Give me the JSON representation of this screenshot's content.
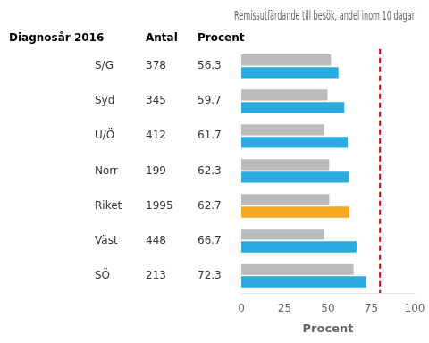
{
  "chart_data": {
    "type": "bar",
    "orientation": "horizontal",
    "title": "Remissutfärdande till besök, andel inom 10 dagar",
    "categories": [
      "S/G",
      "Syd",
      "U/Ö",
      "Norr",
      "Riket",
      "Väst",
      "SÖ"
    ],
    "series": [
      {
        "color": "#BBBBBB",
        "values": [
          52,
          50,
          48,
          51,
          51,
          48,
          65
        ]
      },
      {
        "colors": [
          "#29ABE2",
          "#29ABE2",
          "#29ABE2",
          "#29ABE2",
          "#F5A623",
          "#29ABE2",
          "#29ABE2"
        ],
        "values": [
          56.3,
          59.7,
          61.7,
          62.3,
          62.7,
          66.7,
          72.3
        ]
      }
    ],
    "xlabel": "Procent",
    "xlim": [
      0,
      100
    ],
    "xticks": [
      0,
      25,
      50,
      75,
      100
    ],
    "grid": false,
    "table": {
      "headers": [
        "Diagnosår 2016",
        "Antal",
        "Procent"
      ],
      "counts": [
        378,
        345,
        412,
        199,
        1995,
        448,
        213
      ],
      "percents": [
        56.3,
        59.7,
        61.7,
        62.3,
        62.7,
        66.7,
        72.3
      ]
    },
    "reference_line": {
      "x": 80,
      "color": "#CC0000",
      "line_style": "dashed"
    }
  }
}
